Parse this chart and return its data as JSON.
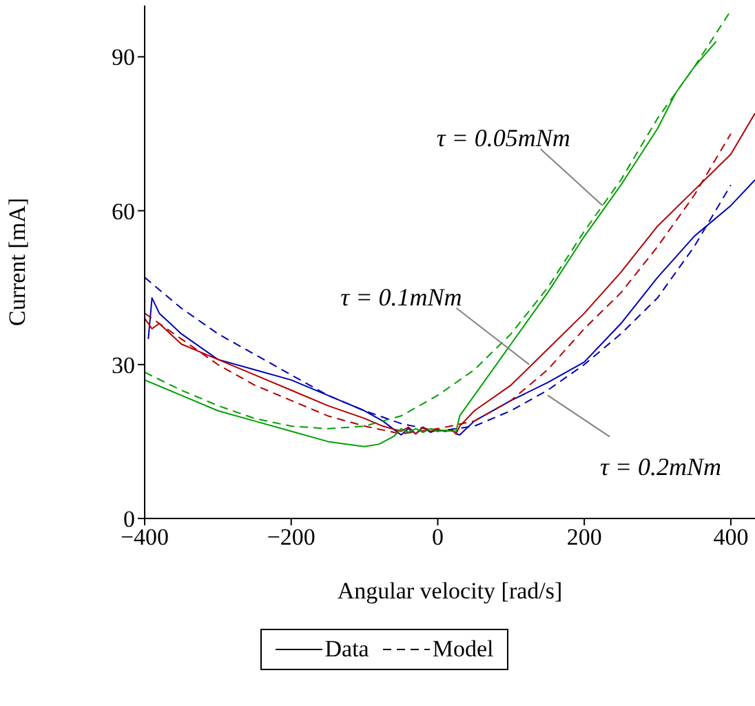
{
  "chart_data": {
    "type": "line",
    "xlabel": "Angular velocity [rad/s]",
    "ylabel": "Current [mA]",
    "xlim": [
      -400,
      433
    ],
    "ylim": [
      0,
      100
    ],
    "xticks": [
      -400,
      -200,
      0,
      200,
      400
    ],
    "yticks": [
      0,
      30,
      60,
      90
    ],
    "legend": "bottom",
    "marker": "none",
    "series": [
      {
        "color": "#0000b3",
        "line_style": "solid",
        "x": [
          -395,
          -390,
          -380,
          -350,
          -300,
          -250,
          -200,
          -150,
          -100,
          -75,
          -50,
          -40,
          -30,
          -20,
          -10,
          0,
          10,
          20,
          25,
          30,
          50,
          100,
          150,
          200,
          250,
          300,
          350,
          400,
          433
        ],
        "values": [
          35,
          43,
          40,
          36,
          31,
          29,
          27,
          24,
          21,
          19,
          16.3,
          17.5,
          16.5,
          17.8,
          16.8,
          17.3,
          17,
          17.2,
          16.5,
          16.3,
          19,
          23,
          26.5,
          30.5,
          38,
          47,
          55,
          61,
          66
        ]
      },
      {
        "color": "#0000b3",
        "line_style": "dashed",
        "x": [
          -400,
          -350,
          -300,
          -250,
          -200,
          -150,
          -100,
          -50,
          0,
          50,
          100,
          150,
          200,
          250,
          300,
          350,
          400
        ],
        "values": [
          47,
          41,
          36,
          32,
          28,
          24,
          21,
          18.5,
          17,
          18,
          21,
          25,
          30,
          36,
          43,
          53,
          65
        ]
      },
      {
        "color": "#b30000",
        "line_style": "solid",
        "x": [
          -400,
          -390,
          -380,
          -350,
          -300,
          -250,
          -200,
          -150,
          -100,
          -75,
          -50,
          -40,
          -30,
          -20,
          -10,
          0,
          10,
          20,
          25,
          30,
          50,
          100,
          150,
          200,
          250,
          300,
          350,
          400,
          433
        ],
        "values": [
          39,
          37,
          38,
          34,
          31,
          28,
          25,
          22,
          19.5,
          18,
          17,
          17.8,
          16.5,
          17.8,
          17,
          17.2,
          17,
          17.2,
          16.5,
          18,
          21,
          26,
          33,
          40,
          48,
          57,
          64,
          71,
          79
        ]
      },
      {
        "color": "#b30000",
        "line_style": "dashed",
        "x": [
          -400,
          -350,
          -300,
          -250,
          -200,
          -150,
          -100,
          -50,
          0,
          50,
          100,
          150,
          200,
          250,
          300,
          350,
          400
        ],
        "values": [
          40,
          35,
          30,
          26,
          23,
          20,
          18,
          16.5,
          17.5,
          19,
          23,
          29,
          37,
          44,
          53,
          63,
          75
        ]
      },
      {
        "color": "#00a000",
        "line_style": "solid",
        "x": [
          -400,
          -350,
          -300,
          -250,
          -200,
          -150,
          -100,
          -80,
          -60,
          -50,
          -40,
          -30,
          -20,
          -10,
          0,
          10,
          20,
          25,
          30,
          50,
          100,
          150,
          200,
          250,
          300,
          325,
          350,
          380
        ],
        "values": [
          27,
          24,
          21,
          19,
          17,
          15,
          14,
          14.5,
          16,
          17.5,
          16.8,
          17.5,
          16.8,
          17.5,
          17,
          17.2,
          17,
          17,
          20,
          24,
          34,
          44,
          55,
          65,
          76,
          83,
          88,
          93
        ]
      },
      {
        "color": "#00a000",
        "line_style": "dashed",
        "x": [
          -400,
          -350,
          -300,
          -250,
          -200,
          -150,
          -100,
          -50,
          0,
          50,
          100,
          150,
          200,
          250,
          300,
          350,
          400
        ],
        "values": [
          28.5,
          25,
          22,
          19.5,
          18,
          17.5,
          18,
          20,
          24,
          29,
          36,
          45,
          56,
          66,
          78,
          88,
          99
        ]
      },
      {
        "name": "Data",
        "color": "#000000",
        "line_style": "solid"
      },
      {
        "name": "Model",
        "color": "#000000",
        "line_style": "dashed"
      }
    ],
    "annotations": [
      {
        "text": "τ = 0.05mNm",
        "x": 225,
        "y": 61
      },
      {
        "text": "τ = 0.1mNm",
        "x": 125,
        "y": 30
      },
      {
        "text": "τ = 0.2mNm",
        "x": 150,
        "y": 24
      }
    ]
  }
}
